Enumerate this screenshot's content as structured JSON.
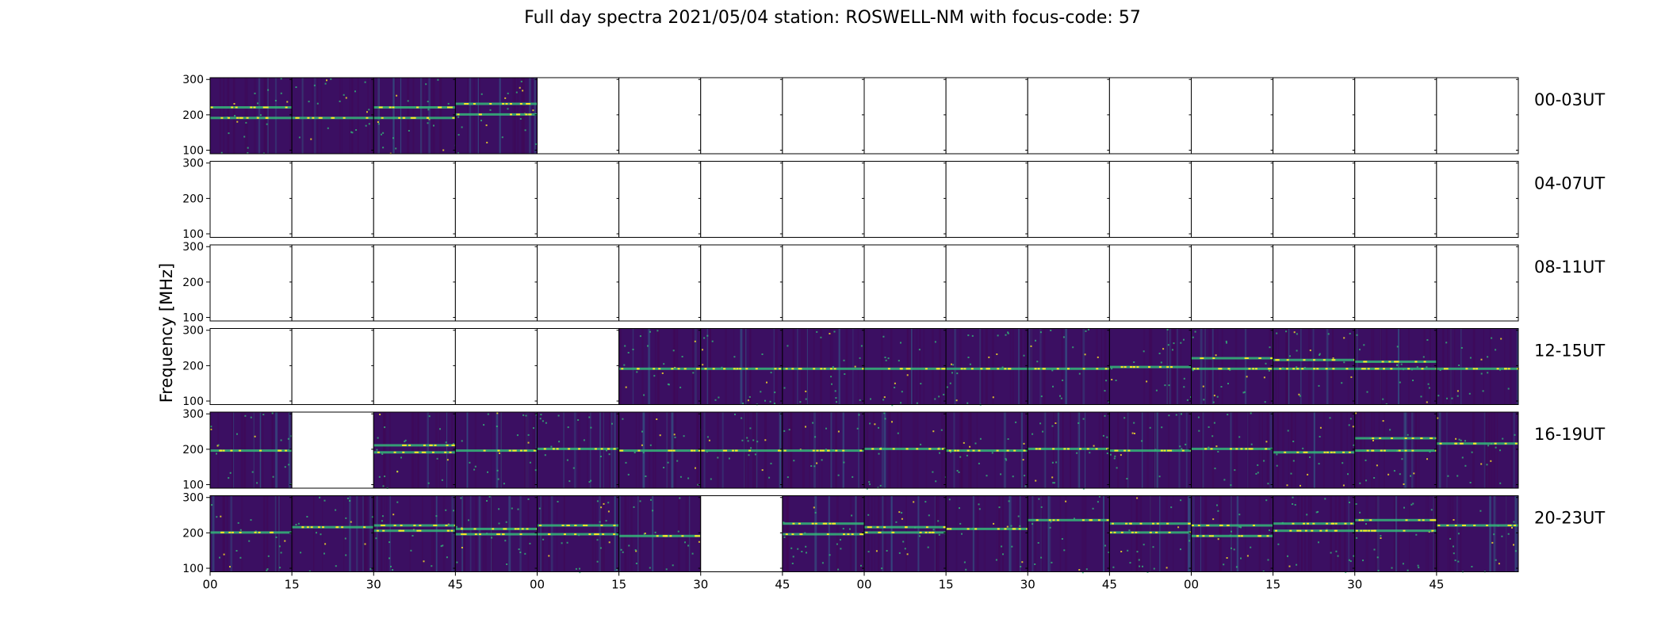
{
  "chart_data": {
    "type": "heatmap",
    "title": "Full day spectra 2021/05/04 station: ROSWELL-NM with focus-code: 57",
    "ylabel": "Frequency [MHz]",
    "xlabel": "",
    "y_ticks": [
      "300",
      "200",
      "100"
    ],
    "ylim": [
      90,
      305
    ],
    "x_ticks": [
      "00",
      "15",
      "30",
      "45",
      "00",
      "15",
      "30",
      "45",
      "00",
      "15",
      "30",
      "45",
      "00",
      "15",
      "30",
      "45"
    ],
    "columns_per_row": 16,
    "minutes_per_panel": 15,
    "colormap": "viridis",
    "row_labels": [
      "00-03UT",
      "04-07UT",
      "08-11UT",
      "12-15UT",
      "16-19UT",
      "20-23UT"
    ],
    "data_present": [
      [
        1,
        1,
        1,
        1,
        0,
        0,
        0,
        0,
        0,
        0,
        0,
        0,
        0,
        0,
        0,
        0
      ],
      [
        0,
        0,
        0,
        0,
        0,
        0,
        0,
        0,
        0,
        0,
        0,
        0,
        0,
        0,
        0,
        0
      ],
      [
        0,
        0,
        0,
        0,
        0,
        0,
        0,
        0,
        0,
        0,
        0,
        0,
        0,
        0,
        0,
        0
      ],
      [
        0,
        0,
        0,
        0,
        0,
        1,
        1,
        1,
        1,
        1,
        1,
        1,
        1,
        1,
        1,
        1
      ],
      [
        1,
        0,
        1,
        1,
        1,
        1,
        1,
        1,
        1,
        1,
        1,
        1,
        1,
        1,
        1,
        1
      ],
      [
        1,
        1,
        1,
        1,
        1,
        1,
        0,
        1,
        1,
        1,
        1,
        1,
        1,
        1,
        1,
        1
      ]
    ],
    "band_mhz": [
      [
        [
          220,
          190
        ],
        [
          190
        ],
        [
          220,
          190
        ],
        [
          230,
          200
        ],
        [],
        [],
        [],
        [],
        [],
        [],
        [],
        [],
        [],
        [],
        [],
        []
      ],
      [
        [],
        [],
        [],
        [],
        [],
        [],
        [],
        [],
        [],
        [],
        [],
        [],
        [],
        [],
        [],
        []
      ],
      [
        [],
        [],
        [],
        [],
        [],
        [],
        [],
        [],
        [],
        [],
        [],
        [],
        [],
        [],
        [],
        []
      ],
      [
        [],
        [],
        [],
        [],
        [],
        [
          190
        ],
        [
          190
        ],
        [
          190
        ],
        [
          190
        ],
        [
          190
        ],
        [
          190
        ],
        [
          195
        ],
        [
          220,
          190
        ],
        [
          215,
          190
        ],
        [
          210,
          190
        ],
        [
          190
        ]
      ],
      [
        [
          195
        ],
        [],
        [
          210,
          190
        ],
        [
          195
        ],
        [
          200
        ],
        [
          195
        ],
        [
          195
        ],
        [
          195
        ],
        [
          200
        ],
        [
          195
        ],
        [
          200
        ],
        [
          195
        ],
        [
          200
        ],
        [
          190
        ],
        [
          230,
          195
        ],
        [
          215
        ]
      ],
      [
        [
          200
        ],
        [
          215
        ],
        [
          220,
          205
        ],
        [
          210,
          195
        ],
        [
          220,
          195
        ],
        [
          190
        ],
        [],
        [
          225,
          195
        ],
        [
          215,
          200
        ],
        [
          210
        ],
        [
          235
        ],
        [
          225,
          200
        ],
        [
          220,
          190
        ],
        [
          225,
          205
        ],
        [
          235,
          205
        ],
        [
          220
        ]
      ]
    ],
    "colors": {
      "base": "#3b0f62",
      "dark": "#400754",
      "mid": "#31688e",
      "bright": "#35b779",
      "yellow": "#fde725"
    }
  }
}
